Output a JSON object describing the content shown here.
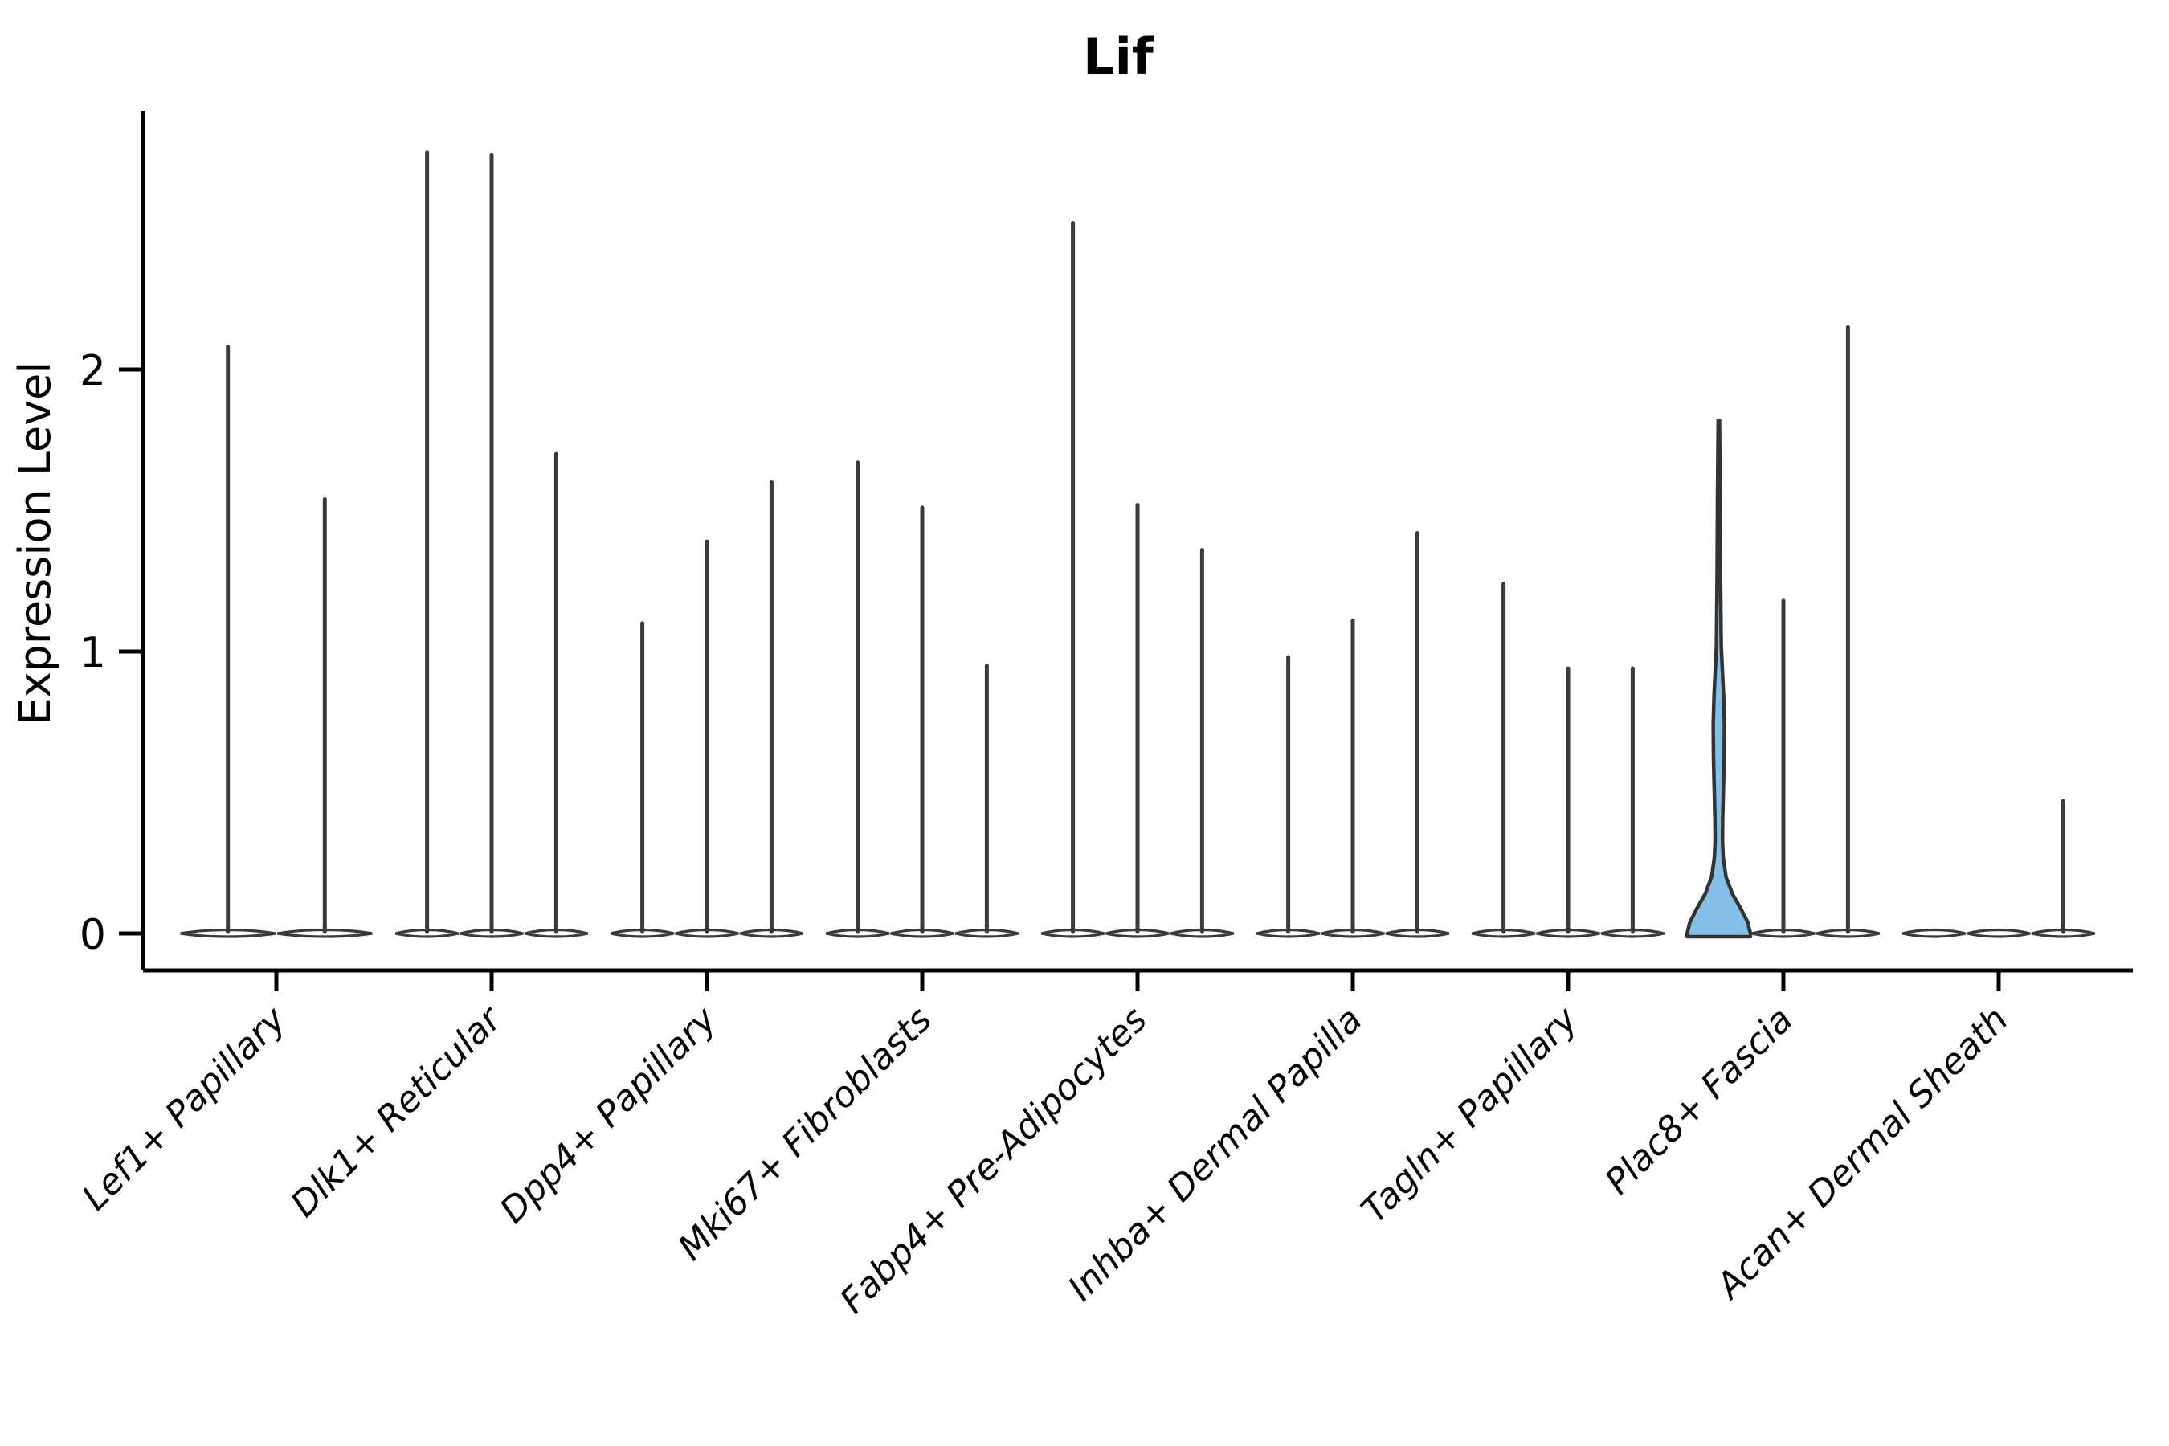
{
  "chart_data": {
    "type": "violin",
    "title": "Lif",
    "ylabel": "Expression Level",
    "xlabel": "",
    "yticks": [
      0,
      1,
      2
    ],
    "ylim": [
      0,
      2.9
    ],
    "grid": false,
    "legend": "none",
    "description": "Single-cell expression violin plot; each group holds 2-3 thin violins (one per sample) whose max spike height is the top expression value; most mass sits at 0 so violins are flat at the baseline. One violin in Plac8+ Fascia is highlighted blue with a visible density bulge.",
    "groups": [
      {
        "label": "Lef1+ Papillary",
        "violin_max_values": [
          2.08,
          1.54
        ]
      },
      {
        "label": "Dlk1+ Reticular",
        "violin_max_values": [
          2.77,
          2.76,
          1.7
        ]
      },
      {
        "label": "Dpp4+ Papillary",
        "violin_max_values": [
          1.1,
          1.39,
          1.6
        ]
      },
      {
        "label": "Mki67+ Fibroblasts",
        "violin_max_values": [
          1.67,
          1.51,
          0.95
        ]
      },
      {
        "label": "Fabp4+ Pre-Adipocytes",
        "violin_max_values": [
          2.52,
          1.52,
          1.36
        ]
      },
      {
        "label": "Inhba+ Dermal Papilla",
        "violin_max_values": [
          0.98,
          1.11,
          1.42
        ]
      },
      {
        "label": "Tagln+ Papillary",
        "violin_max_values": [
          1.24,
          0.94,
          0.94
        ]
      },
      {
        "label": "Plac8+ Fascia",
        "violin_max_values": [
          1.82,
          1.18,
          2.15
        ],
        "highlight_violin_index": 0
      },
      {
        "label": "Acan+ Dermal Sheath",
        "violin_max_values": [
          0,
          0,
          0.47
        ]
      }
    ],
    "highlight_violin": {
      "group": "Plac8+ Fascia",
      "max": 1.82,
      "width_profile": [
        [
          1.82,
          0.8
        ],
        [
          1.55,
          1.6
        ],
        [
          1.25,
          2.2
        ],
        [
          1.02,
          3.0
        ],
        [
          0.93,
          4.5
        ],
        [
          0.84,
          6.0
        ],
        [
          0.74,
          7.0
        ],
        [
          0.62,
          6.6
        ],
        [
          0.5,
          5.6
        ],
        [
          0.4,
          4.8
        ],
        [
          0.33,
          4.6
        ],
        [
          0.27,
          5.5
        ],
        [
          0.2,
          9.0
        ],
        [
          0.14,
          17.0
        ],
        [
          0.09,
          27.0
        ],
        [
          0.04,
          36.0
        ],
        [
          0.0,
          39.4
        ]
      ]
    },
    "colors": {
      "violin_stroke": "#3a3a3a",
      "violin_fill": "#ffffff",
      "highlight_fill": "#84bfe8",
      "axis": "#000000",
      "text": "#000000",
      "background": "#ffffff"
    }
  }
}
